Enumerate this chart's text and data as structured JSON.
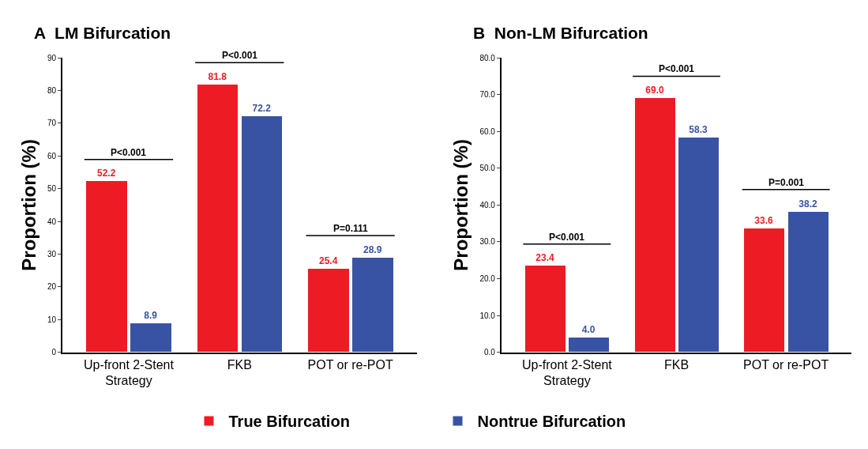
{
  "chart_data": [
    {
      "type": "bar",
      "title": "A  LM Bifurcation",
      "ylabel": "Proportion (%)",
      "categories": [
        "Up-front 2-Stent Strategy",
        "FKB",
        "POT or re-POT"
      ],
      "series": [
        {
          "name": "True Bifurcation",
          "color": "#ed1c24",
          "values": [
            52.2,
            81.8,
            25.4
          ],
          "value_labels": [
            "52.2",
            "81.8",
            "25.4"
          ]
        },
        {
          "name": "Nontrue Bifurcation",
          "color": "#3953a4",
          "values": [
            8.9,
            72.2,
            28.9
          ],
          "value_labels": [
            "8.9",
            "72.2",
            "28.9"
          ]
        }
      ],
      "ylim": [
        0,
        90
      ],
      "yticks": [
        0,
        10,
        20,
        30,
        40,
        50,
        60,
        70,
        80,
        90
      ],
      "legend": "bottom",
      "annotations": [
        "P<0.001",
        "P<0.001",
        "P=0.111"
      ]
    },
    {
      "type": "bar",
      "title": "B  Non-LM Bifurcation",
      "ylabel": "Proportion (%)",
      "categories": [
        "Up-front 2-Stent Strategy",
        "FKB",
        "POT or re-POT"
      ],
      "series": [
        {
          "name": "True Bifurcation",
          "color": "#ed1c24",
          "values": [
            23.4,
            69.0,
            33.6
          ],
          "value_labels": [
            "23.4",
            "69.0",
            "33.6"
          ]
        },
        {
          "name": "Nontrue Bifurcation",
          "color": "#3953a4",
          "values": [
            4.0,
            58.3,
            38.2
          ],
          "value_labels": [
            "4.0",
            "58.3",
            "38.2"
          ]
        }
      ],
      "ylim": [
        0,
        80
      ],
      "yticks": [
        {
          "value": 0,
          "label": "0.0"
        },
        {
          "value": 10,
          "label": "10.0"
        },
        {
          "value": 20,
          "label": "20.0"
        },
        {
          "value": 30,
          "label": "30.0"
        },
        {
          "value": 40,
          "label": "40.0"
        },
        {
          "value": 50,
          "label": "50.0"
        },
        {
          "value": 60,
          "label": "60.0"
        },
        {
          "value": 70,
          "label": "70.0"
        },
        {
          "value": 80,
          "label": "80.0"
        }
      ],
      "legend": "bottom",
      "annotations": [
        "P<0.001",
        "P<0.001",
        "P=0.001"
      ]
    }
  ]
}
